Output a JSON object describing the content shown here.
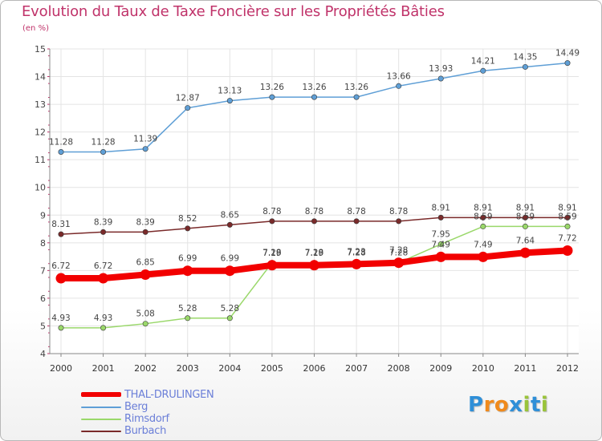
{
  "title": "Evolution du Taux de Taxe Foncière sur les Propriétés Bâties",
  "subtitle": "(en %)",
  "brand": {
    "letters": [
      "P",
      "r",
      "o",
      "x",
      "i",
      "t",
      "i"
    ],
    "colors": [
      "#2f8fd8",
      "#f08a1c",
      "#f08a1c",
      "#2f8fd8",
      "#9ac43a",
      "#2f8fd8",
      "#9ac43a"
    ]
  },
  "chart_data": {
    "type": "line",
    "title": "Evolution du Taux de Taxe Foncière sur les Propriétés Bâties",
    "ylabel": "(en %)",
    "xlabel": "",
    "ylim": [
      4,
      15
    ],
    "yticks": [
      4,
      5,
      6,
      7,
      8,
      9,
      10,
      11,
      12,
      13,
      14,
      15
    ],
    "x": [
      "2000",
      "2001",
      "2002",
      "2003",
      "2004",
      "2005",
      "2006",
      "2007",
      "2008",
      "2009",
      "2010",
      "2011",
      "2012"
    ],
    "grid": true,
    "legend_position": "bottom-left",
    "series": [
      {
        "name": "THAL-DRULINGEN",
        "color": "#f20000",
        "values": [
          6.72,
          6.72,
          6.85,
          6.99,
          6.99,
          7.19,
          7.19,
          7.23,
          7.28,
          7.49,
          7.49,
          7.64,
          7.72
        ],
        "labels": [
          "6.72",
          "6.72",
          "6.85",
          "6.99",
          "6.99",
          "7.19",
          "7.19",
          "7.23",
          "7.28",
          "7.49",
          "7.49",
          "7.64",
          "7.72"
        ]
      },
      {
        "name": "Berg",
        "color": "#5f9fd6",
        "values": [
          11.28,
          11.28,
          11.39,
          12.87,
          13.13,
          13.26,
          13.26,
          13.26,
          13.66,
          13.93,
          14.21,
          14.35,
          14.49
        ],
        "labels": [
          "11.28",
          "11.28",
          "11.39",
          "12.87",
          "13.13",
          "13.26",
          "13.26",
          "13.26",
          "13.66",
          "13.93",
          "14.21",
          "14.35",
          "14.49"
        ]
      },
      {
        "name": "Rimsdorf",
        "color": "#9ad86a",
        "values": [
          4.93,
          4.93,
          5.08,
          5.28,
          5.28,
          7.28,
          7.28,
          7.28,
          7.28,
          7.95,
          8.59,
          8.59,
          8.59
        ],
        "labels": [
          "4.93",
          "4.93",
          "5.08",
          "5.28",
          "5.28",
          "7.28",
          "7.28",
          "7.28",
          "7.28",
          "7.95",
          "8.59",
          "8.59",
          "8.59"
        ]
      },
      {
        "name": "Burbach",
        "color": "#7a2a2a",
        "values": [
          8.31,
          8.39,
          8.39,
          8.52,
          8.65,
          8.78,
          8.78,
          8.78,
          8.78,
          8.91,
          8.91,
          8.91,
          8.91
        ],
        "labels": [
          "8.31",
          "8.39",
          "8.39",
          "8.52",
          "8.65",
          "8.78",
          "8.78",
          "8.78",
          "8.78",
          "8.91",
          "8.91",
          "8.91",
          "8.91"
        ]
      }
    ]
  }
}
